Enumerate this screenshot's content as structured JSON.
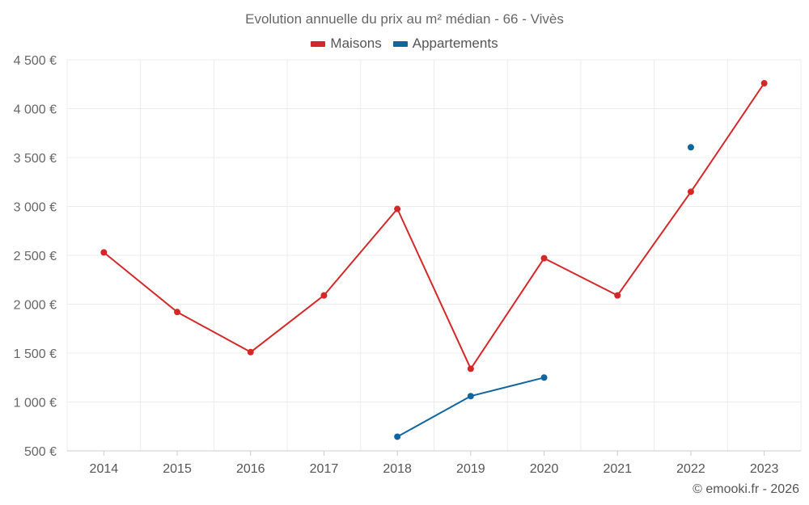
{
  "chart_data": {
    "type": "line",
    "title": "Evolution annuelle du prix au m² médian - 66 - Vivès",
    "categories": [
      "2014",
      "2015",
      "2016",
      "2017",
      "2018",
      "2019",
      "2020",
      "2021",
      "2022",
      "2023"
    ],
    "series": [
      {
        "name": "Maisons",
        "color": "#d62728",
        "values": [
          2530,
          1920,
          1510,
          2090,
          2975,
          1340,
          2470,
          2090,
          3150,
          4260
        ]
      },
      {
        "name": "Appartements",
        "color": "#1166a0",
        "values": [
          null,
          null,
          null,
          null,
          645,
          1060,
          1250,
          null,
          3605,
          null
        ]
      }
    ],
    "ylim": [
      500,
      4500
    ],
    "yticks": [
      500,
      1000,
      1500,
      2000,
      2500,
      3000,
      3500,
      4000,
      4500
    ],
    "ytick_labels": [
      "500 €",
      "1 000 €",
      "1 500 €",
      "2 000 €",
      "2 500 €",
      "3 000 €",
      "3 500 €",
      "4 000 €",
      "4 500 €"
    ],
    "xlabel": "",
    "ylabel": "",
    "grid": true,
    "legend": "top-center"
  },
  "credit": "© emooki.fr - 2026"
}
